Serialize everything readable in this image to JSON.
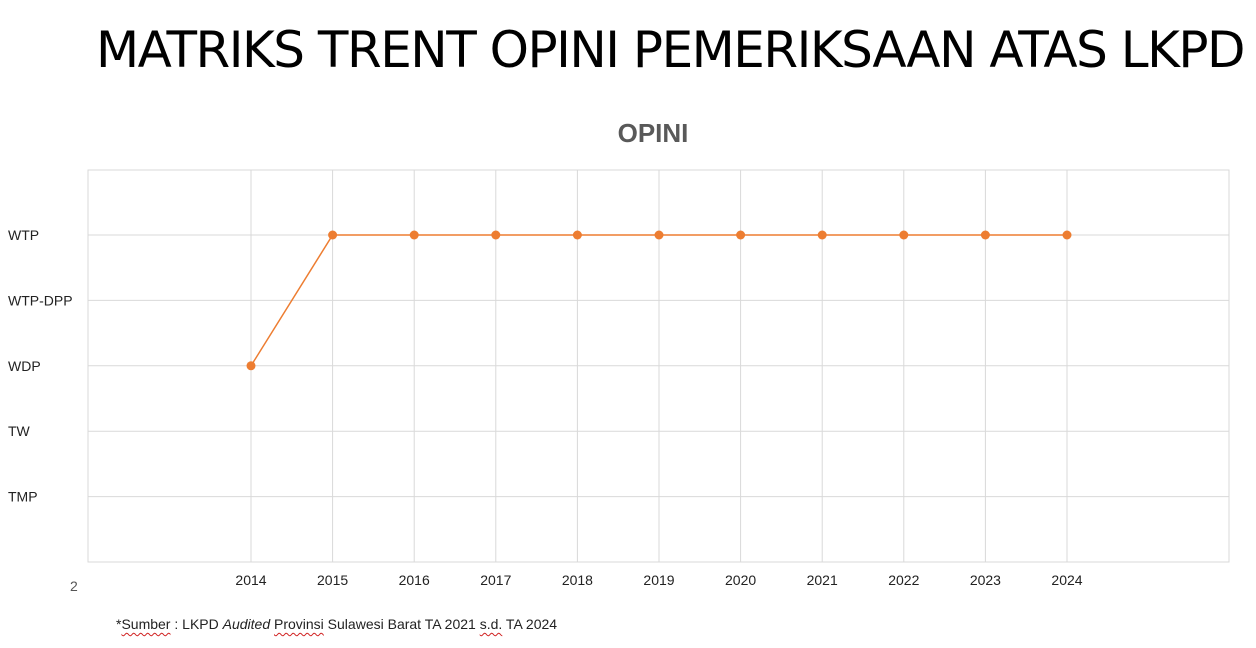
{
  "page_title": "MATRIKS TRENT OPINI PEMERIKSAAN ATAS LKPD",
  "slide_number": "2",
  "source_note": {
    "asterisk": "*",
    "word_sumber": "Sumber",
    "part1": " : LKPD ",
    "audited": "Audited",
    "part2": " ",
    "provinsi": "Provinsi",
    "part3": " Sulawesi Barat TA 2021 ",
    "sd": "s.d.",
    "part4": " TA 2024"
  },
  "colors": {
    "series": "#ed7d31",
    "grid": "#d9d9d9",
    "title": "#595959"
  },
  "chart_data": {
    "type": "line",
    "title": "OPINI",
    "y_categories": [
      "TMP",
      "TW",
      "WDP",
      "WTP-DPP",
      "WTP"
    ],
    "x": [
      "2014",
      "2015",
      "2016",
      "2017",
      "2018",
      "2019",
      "2020",
      "2021",
      "2022",
      "2023",
      "2024"
    ],
    "series": [
      {
        "values": [
          "WDP",
          "WTP",
          "WTP",
          "WTP",
          "WTP",
          "WTP",
          "WTP",
          "WTP",
          "WTP",
          "WTP",
          "WTP"
        ],
        "marker": "circle"
      }
    ],
    "grid": true,
    "legend": "none"
  }
}
